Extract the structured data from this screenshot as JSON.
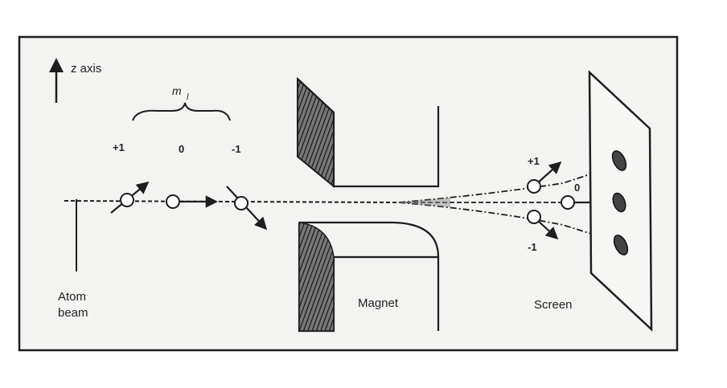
{
  "axis_label": "z axis",
  "ml_label": "m",
  "ml_subscript": "l",
  "beam_states": [
    "+1",
    "0",
    "-1"
  ],
  "screen_states": [
    "+1",
    "0",
    "-1"
  ],
  "labels": {
    "atom_beam_line1": "Atom",
    "atom_beam_line2": "beam",
    "magnet": "Magnet",
    "screen": "Screen"
  },
  "colors": {
    "ink": "#1e1e1e",
    "paper": "#f3f3f1"
  }
}
